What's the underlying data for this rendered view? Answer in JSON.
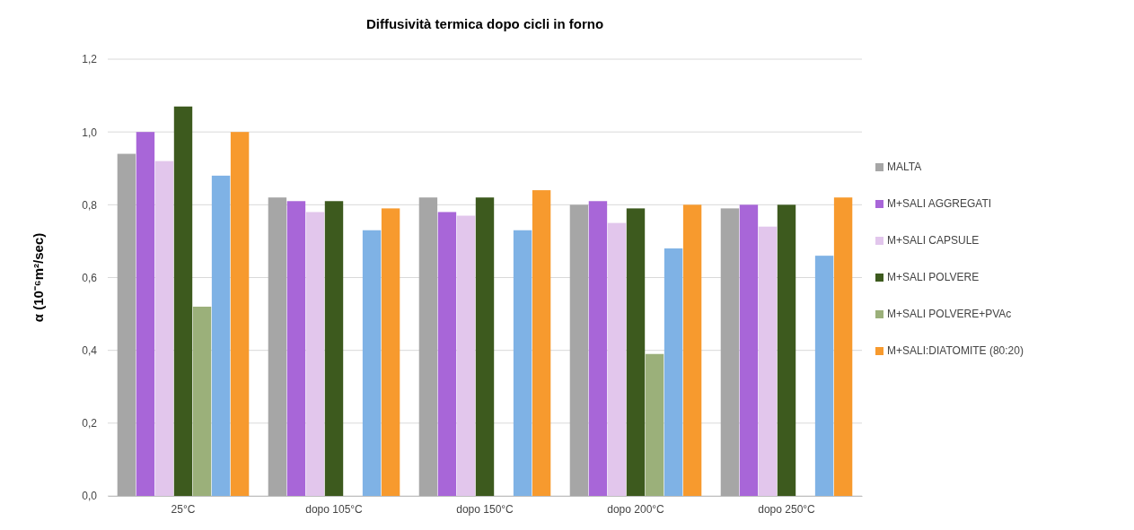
{
  "chart_data": {
    "type": "bar",
    "title": "Diffusività termica dopo cicli in forno",
    "ylabel": "α (10⁻⁶m²/sec)",
    "categories": [
      "25°C",
      "dopo 105°C",
      "dopo 150°C",
      "dopo 200°C",
      "dopo 250°C"
    ],
    "series": [
      {
        "name": "MALTA",
        "color": "#a6a6a6",
        "values": [
          0.94,
          0.82,
          0.82,
          0.8,
          0.79
        ]
      },
      {
        "name": "M+SALI AGGREGATI",
        "color": "#a866d8",
        "values": [
          1.0,
          0.81,
          0.78,
          0.81,
          0.8
        ]
      },
      {
        "name": "M+SALI CAPSULE",
        "color": "#e2c6ec",
        "values": [
          0.92,
          0.78,
          0.77,
          0.75,
          0.74
        ]
      },
      {
        "name": "M+SALI POLVERE",
        "color": "#3d5a1e",
        "values": [
          1.07,
          0.81,
          0.82,
          0.79,
          0.8
        ]
      },
      {
        "name": "M+SALI POLVERE+PVAc",
        "color": "#9bb07a",
        "values": [
          0.52,
          null,
          null,
          0.39,
          null
        ]
      },
      {
        "color": "#7fb2e5",
        "values": [
          0.88,
          0.73,
          0.73,
          0.68,
          0.66
        ]
      },
      {
        "name": "M+SALI:DIATOMITE (80:20)",
        "color": "#f79a2e",
        "values": [
          1.0,
          0.79,
          0.84,
          0.8,
          0.82
        ]
      }
    ],
    "ylim": [
      0,
      1.2
    ],
    "yticks": [
      {
        "value": 0,
        "label": "0,0"
      },
      {
        "value": 0.2,
        "label": "0,2"
      },
      {
        "value": 0.4,
        "label": "0,4"
      },
      {
        "value": 0.6,
        "label": "0,6"
      },
      {
        "value": 0.8,
        "label": "0,8"
      },
      {
        "value": 1.0,
        "label": "1,0"
      },
      {
        "value": 1.2,
        "label": "1,2"
      }
    ],
    "grid": "y",
    "legend": "right"
  }
}
